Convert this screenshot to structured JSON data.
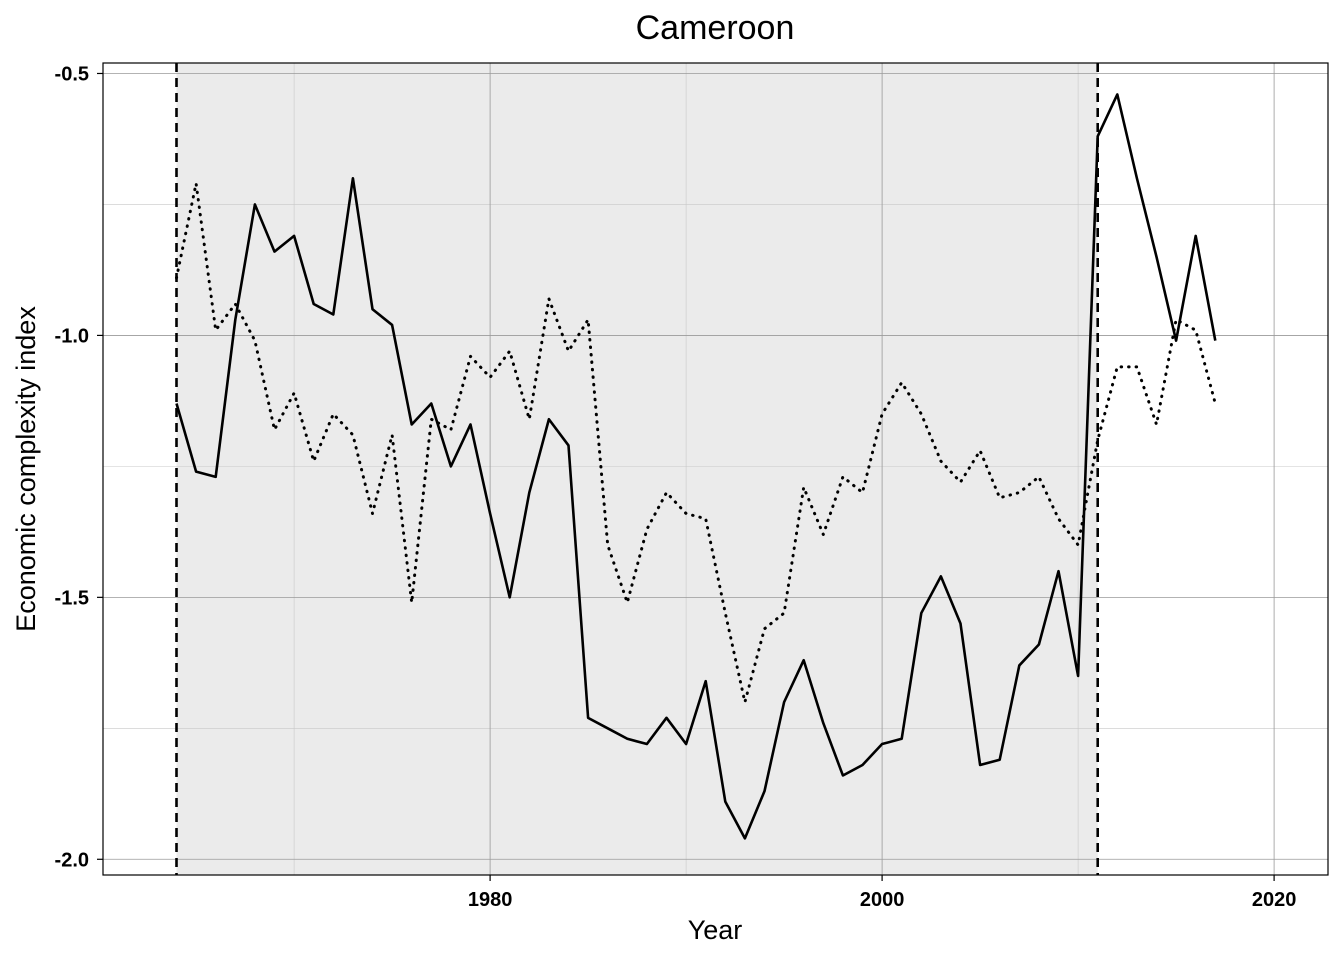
{
  "chart_data": {
    "type": "line",
    "title": "Cameroon",
    "xlabel": "Year",
    "ylabel": "Economic complexity index",
    "xlim": [
      1960.25,
      2022.75
    ],
    "ylim": [
      -2.03,
      -0.48
    ],
    "x_ticks": [
      1980,
      2000,
      2020
    ],
    "x_tick_labels": [
      "1980",
      "2000",
      "2020"
    ],
    "y_ticks": [
      -2.0,
      -1.5,
      -1.0,
      -0.5
    ],
    "y_tick_labels": [
      "-2.0",
      "-1.5",
      "-1.0",
      "-0.5"
    ],
    "grid": true,
    "shaded_region": {
      "x_start": 1964,
      "x_end": 2011,
      "color": "#ebebeb"
    },
    "vertical_lines": [
      1964,
      2011
    ],
    "series": [
      {
        "style": "solid",
        "color": "#000000",
        "x": [
          1964,
          1965,
          1966,
          1967,
          1968,
          1969,
          1970,
          1971,
          1972,
          1973,
          1974,
          1975,
          1976,
          1977,
          1978,
          1979,
          1980,
          1981,
          1982,
          1983,
          1984,
          1985,
          1986,
          1987,
          1988,
          1989,
          1990,
          1991,
          1992,
          1993,
          1994,
          1995,
          1996,
          1997,
          1998,
          1999,
          2000,
          2001,
          2002,
          2003,
          2004,
          2005,
          2006,
          2007,
          2008,
          2009,
          2010,
          2011,
          2012,
          2013,
          2014,
          2015,
          2016,
          2017
        ],
        "y": [
          -1.13,
          -1.26,
          -1.27,
          -0.97,
          -0.75,
          -0.84,
          -0.81,
          -0.94,
          -0.96,
          -0.7,
          -0.95,
          -0.98,
          -1.17,
          -1.13,
          -1.25,
          -1.17,
          -1.34,
          -1.5,
          -1.3,
          -1.16,
          -1.21,
          -1.73,
          -1.75,
          -1.77,
          -1.78,
          -1.73,
          -1.78,
          -1.66,
          -1.89,
          -1.96,
          -1.87,
          -1.7,
          -1.62,
          -1.74,
          -1.84,
          -1.82,
          -1.78,
          -1.77,
          -1.53,
          -1.46,
          -1.55,
          -1.82,
          -1.81,
          -1.63,
          -1.59,
          -1.45,
          -1.65,
          -0.62,
          -0.54,
          -0.7,
          -0.85,
          -1.01,
          -0.81,
          -1.01
        ]
      },
      {
        "style": "dotted",
        "color": "#000000",
        "x": [
          1964,
          1965,
          1966,
          1967,
          1968,
          1969,
          1970,
          1971,
          1972,
          1973,
          1974,
          1975,
          1976,
          1977,
          1978,
          1979,
          1980,
          1981,
          1982,
          1983,
          1984,
          1985,
          1986,
          1987,
          1988,
          1989,
          1990,
          1991,
          1992,
          1993,
          1994,
          1995,
          1996,
          1997,
          1998,
          1999,
          2000,
          2001,
          2002,
          2003,
          2004,
          2005,
          2006,
          2007,
          2008,
          2009,
          2010,
          2011,
          2012,
          2013,
          2014,
          2015,
          2016,
          2017
        ],
        "y": [
          -0.89,
          -0.71,
          -0.99,
          -0.94,
          -1.01,
          -1.18,
          -1.11,
          -1.24,
          -1.15,
          -1.19,
          -1.34,
          -1.19,
          -1.51,
          -1.16,
          -1.18,
          -1.04,
          -1.08,
          -1.03,
          -1.16,
          -0.93,
          -1.03,
          -0.97,
          -1.4,
          -1.51,
          -1.37,
          -1.3,
          -1.34,
          -1.35,
          -1.53,
          -1.7,
          -1.56,
          -1.53,
          -1.29,
          -1.38,
          -1.27,
          -1.3,
          -1.15,
          -1.09,
          -1.15,
          -1.24,
          -1.28,
          -1.22,
          -1.31,
          -1.3,
          -1.27,
          -1.35,
          -1.4,
          -1.2,
          -1.06,
          -1.06,
          -1.17,
          -0.97,
          -0.99,
          -1.13
        ]
      }
    ]
  }
}
